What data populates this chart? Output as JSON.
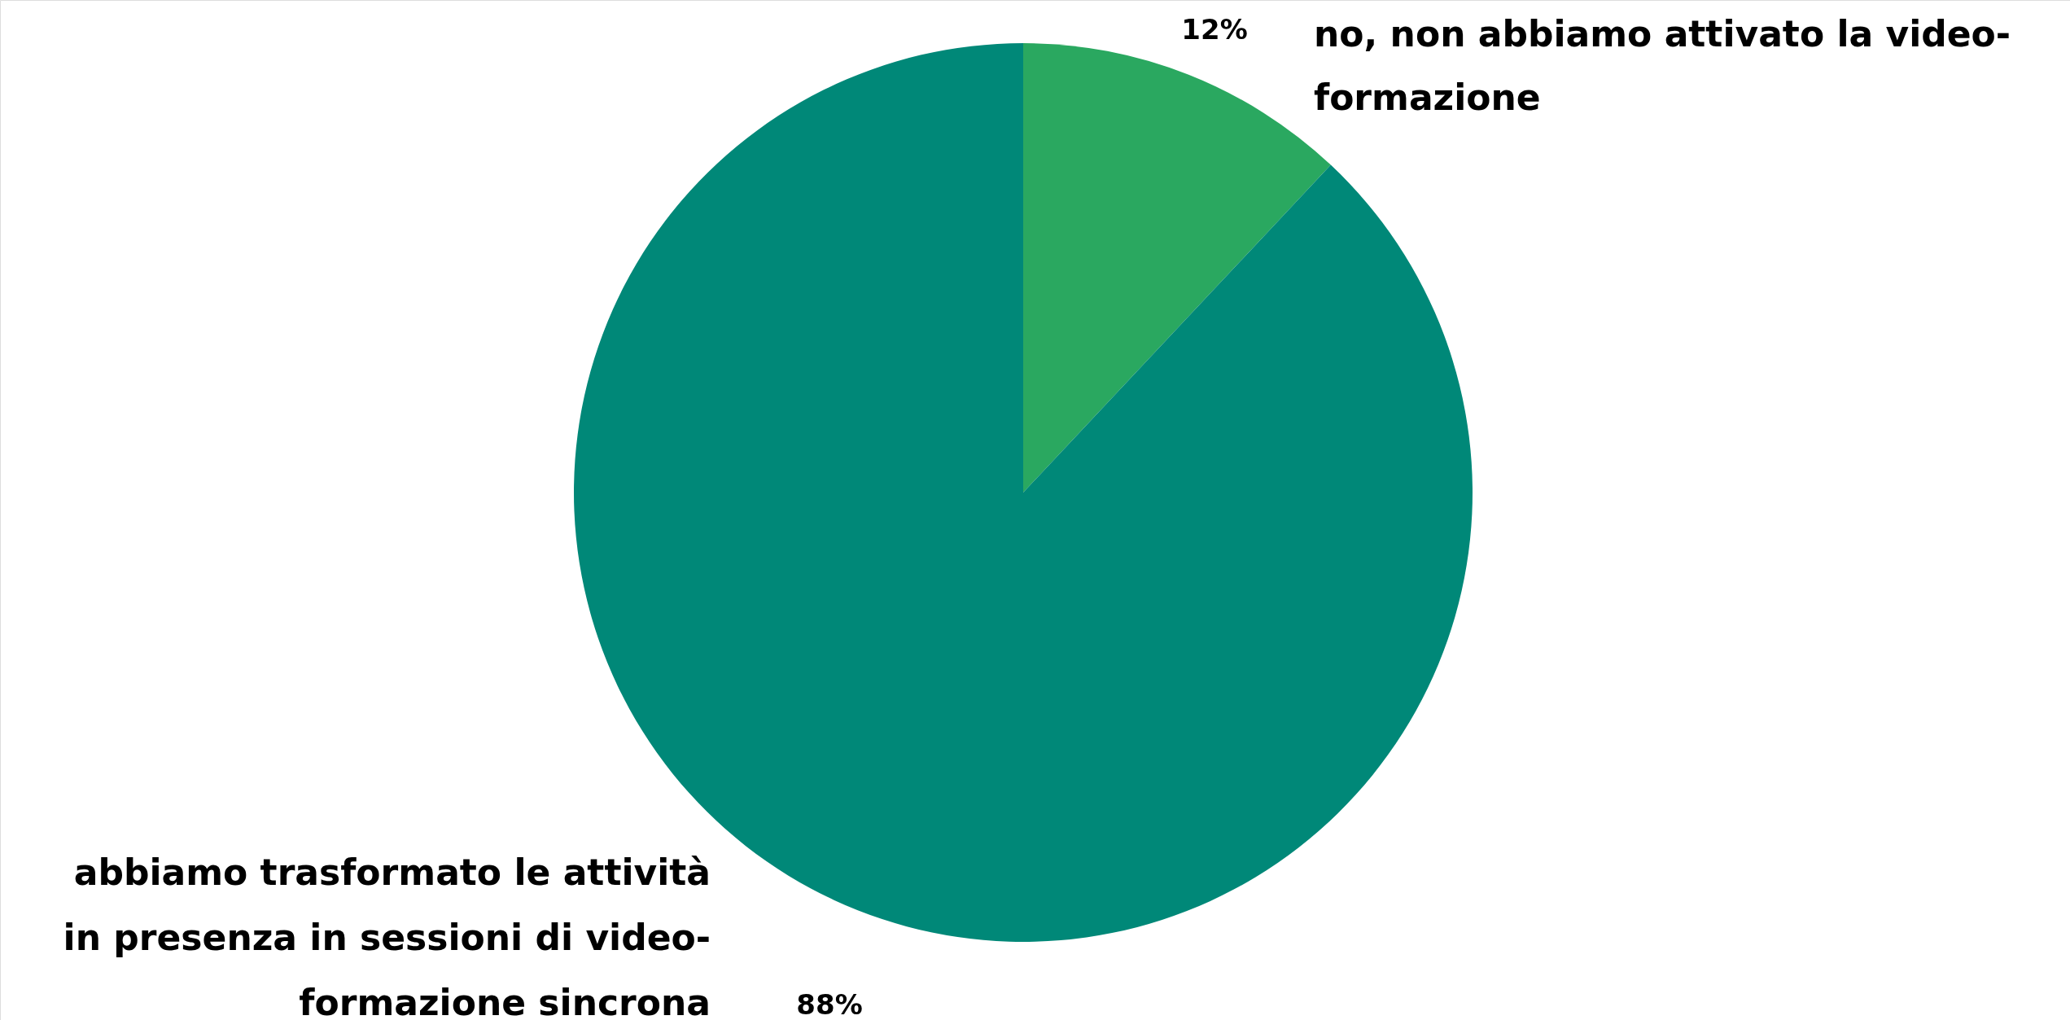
{
  "chart_data": {
    "type": "pie",
    "categories": [
      "no, non abbiamo attivato la video-formazione",
      "abbiamo trasformato le attività in presenza in sessioni di video-formazione sincrona"
    ],
    "values": [
      12,
      88
    ],
    "colors": [
      "#2aa860",
      "#008878"
    ],
    "value_labels": [
      "12%",
      "88%"
    ]
  }
}
